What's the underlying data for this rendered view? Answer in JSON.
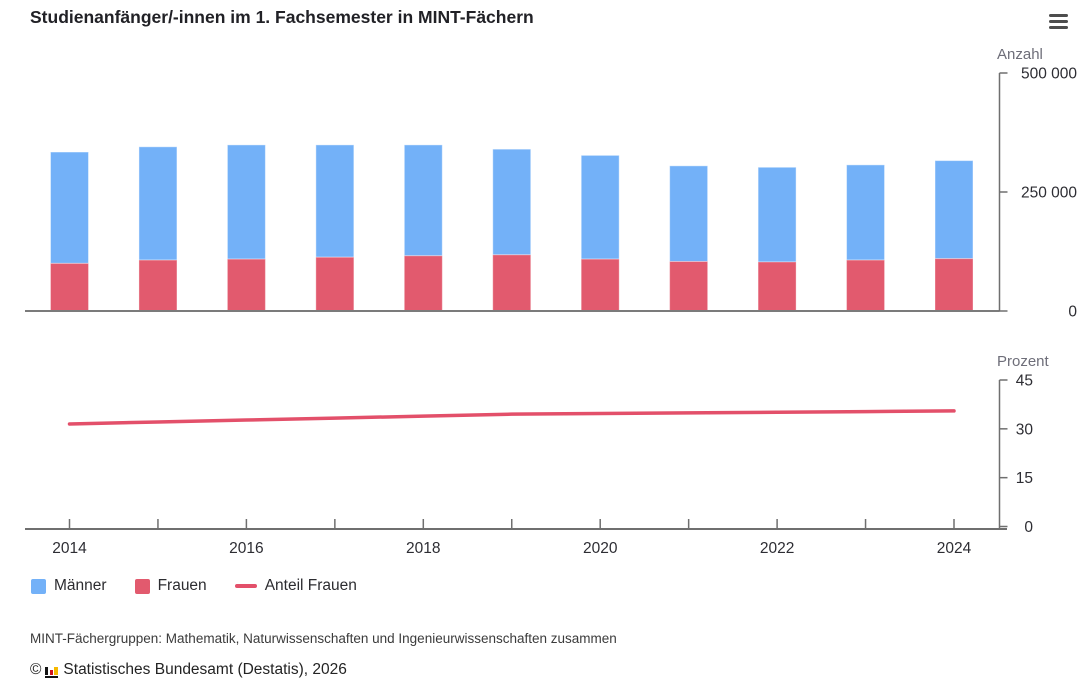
{
  "header": {
    "title": "Studienanfänger/-innen im 1. Fachsemester in MINT-Fächern",
    "menu_icon": "hamburger-icon"
  },
  "chart_data": [
    {
      "type": "bar",
      "stacked": true,
      "categories": [
        "2014",
        "2015",
        "2016",
        "2017",
        "2018",
        "2019",
        "2020",
        "2021",
        "2022",
        "2023",
        "2024"
      ],
      "series": [
        {
          "name": "Männer",
          "color": "#73B1F8",
          "values": [
            234000,
            238000,
            240000,
            236000,
            233000,
            222000,
            218000,
            201000,
            199000,
            200000,
            206000
          ]
        },
        {
          "name": "Frauen",
          "color": "#E25A6E",
          "values": [
            100000,
            107000,
            109000,
            113000,
            116000,
            118000,
            109000,
            104000,
            103000,
            107000,
            110000
          ]
        }
      ],
      "title": "",
      "xlabel": "",
      "ylabel": "Anzahl",
      "ylim": [
        0,
        500000
      ],
      "yticks": [
        {
          "value": 500000,
          "label": "500 000"
        },
        {
          "value": 250000,
          "label": "250 000"
        },
        {
          "value": 0,
          "label": "0"
        }
      ],
      "grid": false,
      "axis_side": "right"
    },
    {
      "type": "line",
      "x": [
        "2014",
        "2015",
        "2016",
        "2017",
        "2018",
        "2019",
        "2020",
        "2021",
        "2022",
        "2023",
        "2024"
      ],
      "series": [
        {
          "name": "Anteil Frauen",
          "color": "#E3506A",
          "values": [
            31.5,
            32.1,
            32.7,
            33.3,
            33.9,
            34.5,
            34.7,
            34.9,
            35.1,
            35.3,
            35.5
          ]
        }
      ],
      "title": "",
      "xlabel": "",
      "ylabel": "Prozent",
      "ylim": [
        0,
        45
      ],
      "yticks": [
        {
          "value": 45,
          "label": "45"
        },
        {
          "value": 30,
          "label": "30"
        },
        {
          "value": 15,
          "label": "15"
        },
        {
          "value": 0,
          "label": "0"
        }
      ],
      "xtick_labels": [
        "2014",
        "2016",
        "2018",
        "2020",
        "2022",
        "2024"
      ],
      "grid": false,
      "axis_side": "right"
    }
  ],
  "legend": {
    "items": [
      {
        "label": "Männer",
        "marker": "square",
        "color": "#73B1F8"
      },
      {
        "label": "Frauen",
        "marker": "square",
        "color": "#E25A6E"
      },
      {
        "label": "Anteil Frauen",
        "marker": "line",
        "color": "#E3506A"
      }
    ]
  },
  "footnote": "MINT-Fächergruppen: Mathematik, Naturwissenschaften und Ingenieurwissenschaften zusammen",
  "source": {
    "prefix": "©",
    "logo": "destatis-logo",
    "text": "Statistisches Bundesamt (Destatis), 2026"
  }
}
